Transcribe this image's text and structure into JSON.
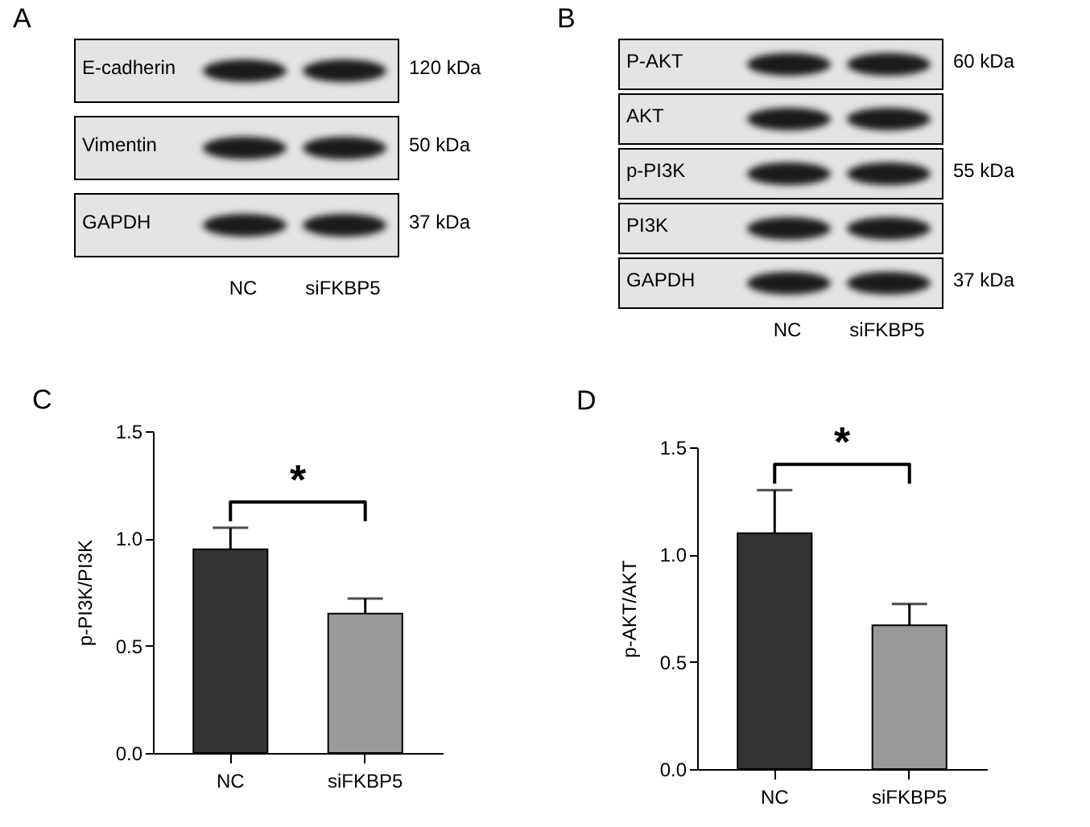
{
  "chart_data": [
    {
      "type": "other",
      "title": "A",
      "categories": [
        "NC",
        "siFKBP5"
      ],
      "y_categories": [
        "E-cadherin",
        "Vimentin",
        "GAPDH"
      ],
      "annotations": [
        {
          "text": "120 kDa",
          "y": "E-cadherin"
        },
        {
          "text": "50 kDa",
          "y": "Vimentin"
        },
        {
          "text": "37 kDa",
          "y": "GAPDH"
        }
      ]
    },
    {
      "type": "other",
      "title": "B",
      "categories": [
        "NC",
        "siFKBP5"
      ],
      "y_categories": [
        "P-AKT",
        "AKT",
        "p-PI3K",
        "PI3K",
        "GAPDH"
      ],
      "annotations": [
        {
          "text": "60 kDa",
          "y": "P-AKT"
        },
        {
          "text": "55 kDa",
          "y": "p-PI3K"
        },
        {
          "text": "37 kDa",
          "y": "GAPDH"
        }
      ]
    },
    {
      "type": "bar",
      "title": "C",
      "ylabel": "p-PI3K/PI3K",
      "categories": [
        "NC",
        "siFKBP5"
      ],
      "values": [
        0.95,
        0.65
      ],
      "colors": [
        "#333333",
        "#999999"
      ],
      "errors": [
        [
          0.95,
          1.05
        ],
        [
          0.65,
          0.72
        ]
      ],
      "ylim": [
        0,
        1.5
      ],
      "yticks": [
        {
          "value": 0,
          "label": "0.0"
        },
        {
          "value": 0.5,
          "label": "0.5"
        },
        {
          "value": 1,
          "label": "1.0"
        },
        {
          "value": 1.5,
          "label": "1.5"
        }
      ],
      "annotations": [
        "*"
      ]
    },
    {
      "type": "bar",
      "title": "D",
      "ylabel": "p-AKT/AKT",
      "categories": [
        "NC",
        "siFKBP5"
      ],
      "values": [
        1.1,
        0.67
      ],
      "colors": [
        "#333333",
        "#999999"
      ],
      "errors": [
        [
          1.1,
          1.3
        ],
        [
          0.67,
          0.77
        ]
      ],
      "ylim": [
        0,
        1.5
      ],
      "yticks": [
        {
          "value": 0,
          "label": "0.0"
        },
        {
          "value": 0.5,
          "label": "0.5"
        },
        {
          "value": 1,
          "label": "1.0"
        },
        {
          "value": 1.5,
          "label": "1.5"
        }
      ],
      "annotations": [
        "*"
      ]
    }
  ]
}
